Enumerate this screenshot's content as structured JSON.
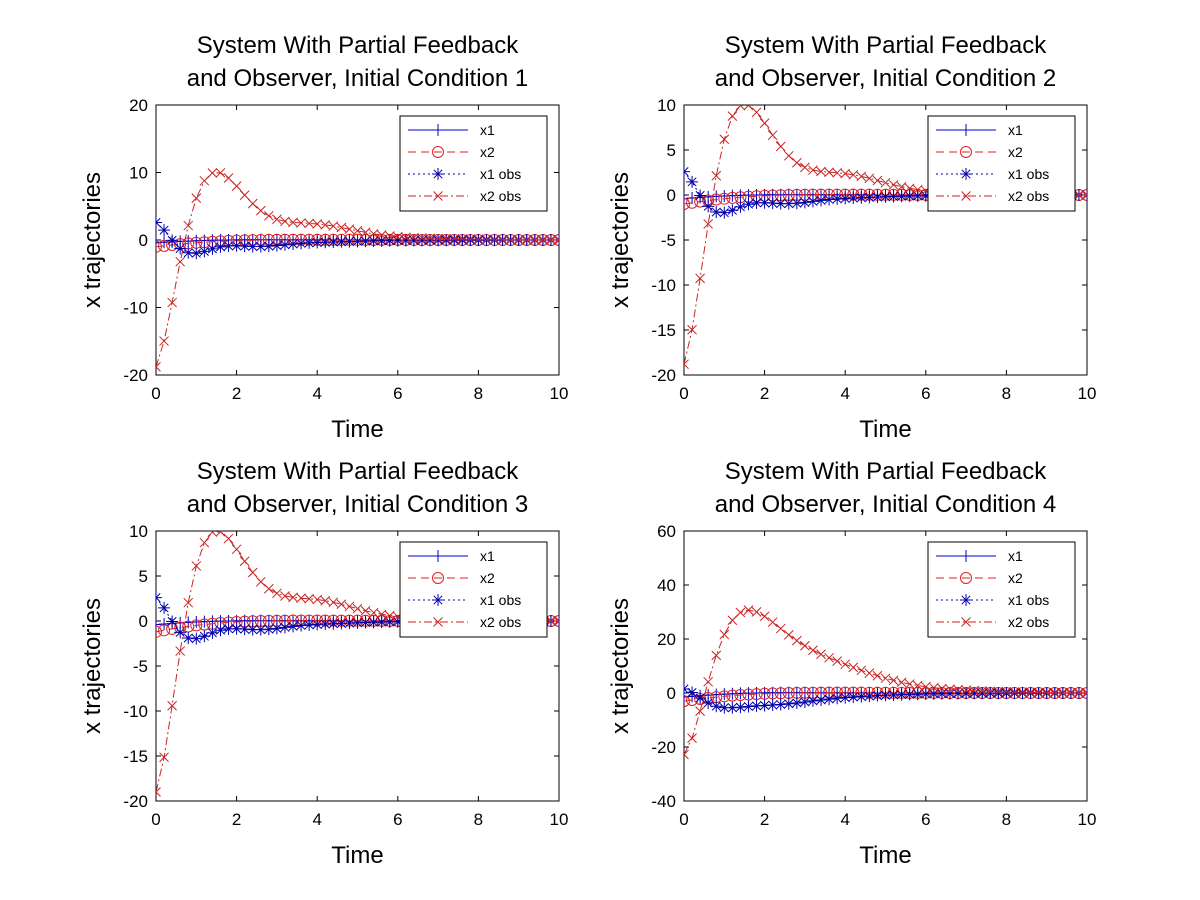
{
  "colors": {
    "x1": "#0000cc",
    "x2": "#dd2222",
    "x1obs": "#0000aa",
    "x2obs": "#cc2222"
  },
  "chart_data": [
    {
      "type": "line",
      "title": [
        "System With Partial Feedback",
        "and Observer, Initial Condition 1"
      ],
      "xlabel": "Time",
      "ylabel": "x trajectories",
      "xlim": [
        0,
        10
      ],
      "ylim": [
        -20,
        20
      ],
      "xticks": [
        0,
        2,
        4,
        6,
        8,
        10
      ],
      "yticks": [
        -20,
        -10,
        0,
        10,
        20
      ],
      "legend": [
        "x1",
        "x2",
        "x1 obs",
        "x2 obs"
      ],
      "legend_position": "top-right",
      "params": {
        "a": -0.4,
        "b": -1.0,
        "s": 3.0,
        "oa": 3.0,
        "ob": -18.0,
        "peak": 10
      }
    },
    {
      "type": "line",
      "title": [
        "System With Partial Feedback",
        "and Observer, Initial Condition 2"
      ],
      "xlabel": "Time",
      "ylabel": "x trajectories",
      "xlim": [
        0,
        10
      ],
      "ylim": [
        -20,
        10
      ],
      "xticks": [
        0,
        2,
        4,
        6,
        8,
        10
      ],
      "yticks": [
        -20,
        -15,
        -10,
        -5,
        0,
        5,
        10
      ],
      "legend": [
        "x1",
        "x2",
        "x1 obs",
        "x2 obs"
      ],
      "legend_position": "top-right",
      "params": {
        "a": -0.4,
        "b": -1.0,
        "s": 3.0,
        "oa": 3.0,
        "ob": -18.0,
        "peak": 10
      }
    },
    {
      "type": "line",
      "title": [
        "System With Partial Feedback",
        "and Observer, Initial Condition 3"
      ],
      "xlabel": "Time",
      "ylabel": "x trajectories",
      "xlim": [
        0,
        10
      ],
      "ylim": [
        -20,
        10
      ],
      "xticks": [
        0,
        2,
        4,
        6,
        8,
        10
      ],
      "yticks": [
        -20,
        -15,
        -10,
        -5,
        0,
        5,
        10
      ],
      "legend": [
        "x1",
        "x2",
        "x1 obs",
        "x2 obs"
      ],
      "legend_position": "top-right",
      "params": {
        "a": -0.4,
        "b": -1.2,
        "s": 3.0,
        "oa": 3.0,
        "ob": -18.0,
        "peak": 10
      }
    },
    {
      "type": "line",
      "title": [
        "System With Partial Feedback",
        "and Observer, Initial Condition 4"
      ],
      "xlabel": "Time",
      "ylabel": "x trajectories",
      "xlim": [
        0,
        10
      ],
      "ylim": [
        -40,
        60
      ],
      "xticks": [
        0,
        2,
        4,
        6,
        8,
        10
      ],
      "yticks": [
        -40,
        -20,
        0,
        20,
        40,
        60
      ],
      "legend": [
        "x1",
        "x2",
        "x1 obs",
        "x2 obs"
      ],
      "legend_position": "top-right",
      "params": {
        "a": -1.5,
        "b": -3.0,
        "s": 13.0,
        "oa": 3.0,
        "ob": -20.0,
        "peak": 45
      }
    }
  ]
}
